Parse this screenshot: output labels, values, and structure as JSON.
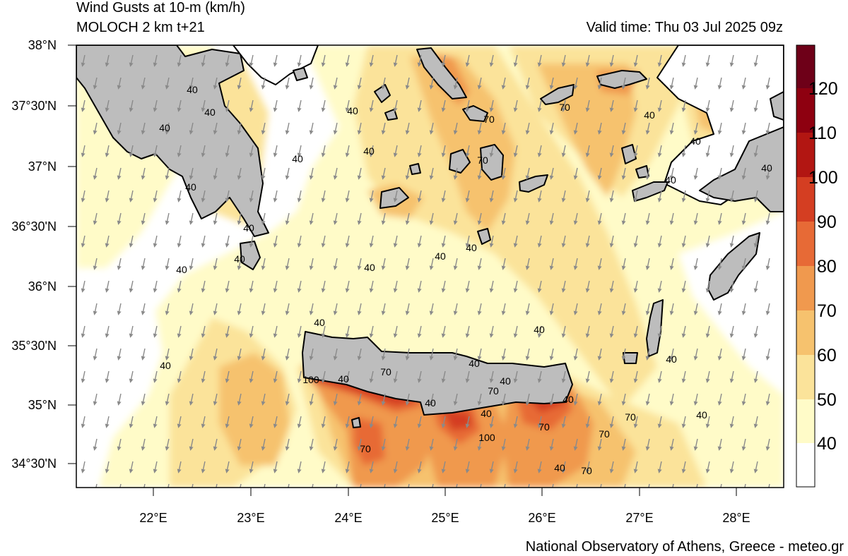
{
  "header": {
    "title": "Wind Gusts at 10-m (km/h)",
    "model": "MOLOCH 2 km t+21",
    "valid_time": "Valid time: Thu 03 Jul 2025 09z"
  },
  "footer": {
    "credit": "National Observatory of Athens, Greece - meteo.gr"
  },
  "axes": {
    "lat_ticks": [
      "38°N",
      "37°30'N",
      "37°N",
      "36°30'N",
      "36°N",
      "35°30'N",
      "35°N",
      "34°30'N"
    ],
    "lon_ticks": [
      "22°E",
      "23°E",
      "24°E",
      "25°E",
      "26°E",
      "27°E",
      "28°E"
    ]
  },
  "colorbar": {
    "labels": [
      "40",
      "50",
      "60",
      "70",
      "80",
      "90",
      "100",
      "110",
      "120"
    ],
    "colors": [
      "#ffffff",
      "#fffbc8",
      "#fbe39a",
      "#f6c26e",
      "#f0994e",
      "#e76a36",
      "#d43e22",
      "#b21612",
      "#8e0010",
      "#6e0018"
    ]
  },
  "map_colors": {
    "land": "#bdbdbd",
    "sea": "#ffffff",
    "arrow": "#8a8a8a",
    "coast": "#000000"
  },
  "contour_labels": [
    {
      "text": "40"
    },
    {
      "text": "40"
    },
    {
      "text": "40"
    },
    {
      "text": "40"
    },
    {
      "text": "40"
    },
    {
      "text": "40"
    },
    {
      "text": "40"
    },
    {
      "text": "40"
    },
    {
      "text": "70"
    },
    {
      "text": "70"
    },
    {
      "text": "40"
    },
    {
      "text": "40"
    },
    {
      "text": "70"
    },
    {
      "text": "40"
    },
    {
      "text": "40"
    },
    {
      "text": "40"
    },
    {
      "text": "40"
    },
    {
      "text": "40"
    },
    {
      "text": "40"
    },
    {
      "text": "40"
    },
    {
      "text": "40"
    },
    {
      "text": "40"
    },
    {
      "text": "40"
    },
    {
      "text": "40"
    },
    {
      "text": "40"
    },
    {
      "text": "70"
    },
    {
      "text": "100"
    },
    {
      "text": "40"
    },
    {
      "text": "40"
    },
    {
      "text": "40"
    },
    {
      "text": "70"
    },
    {
      "text": "40"
    },
    {
      "text": "100"
    },
    {
      "text": "70"
    },
    {
      "text": "40"
    },
    {
      "text": "70"
    },
    {
      "text": "40"
    },
    {
      "text": "70"
    },
    {
      "text": "70"
    },
    {
      "text": "40"
    },
    {
      "text": "70"
    }
  ]
}
